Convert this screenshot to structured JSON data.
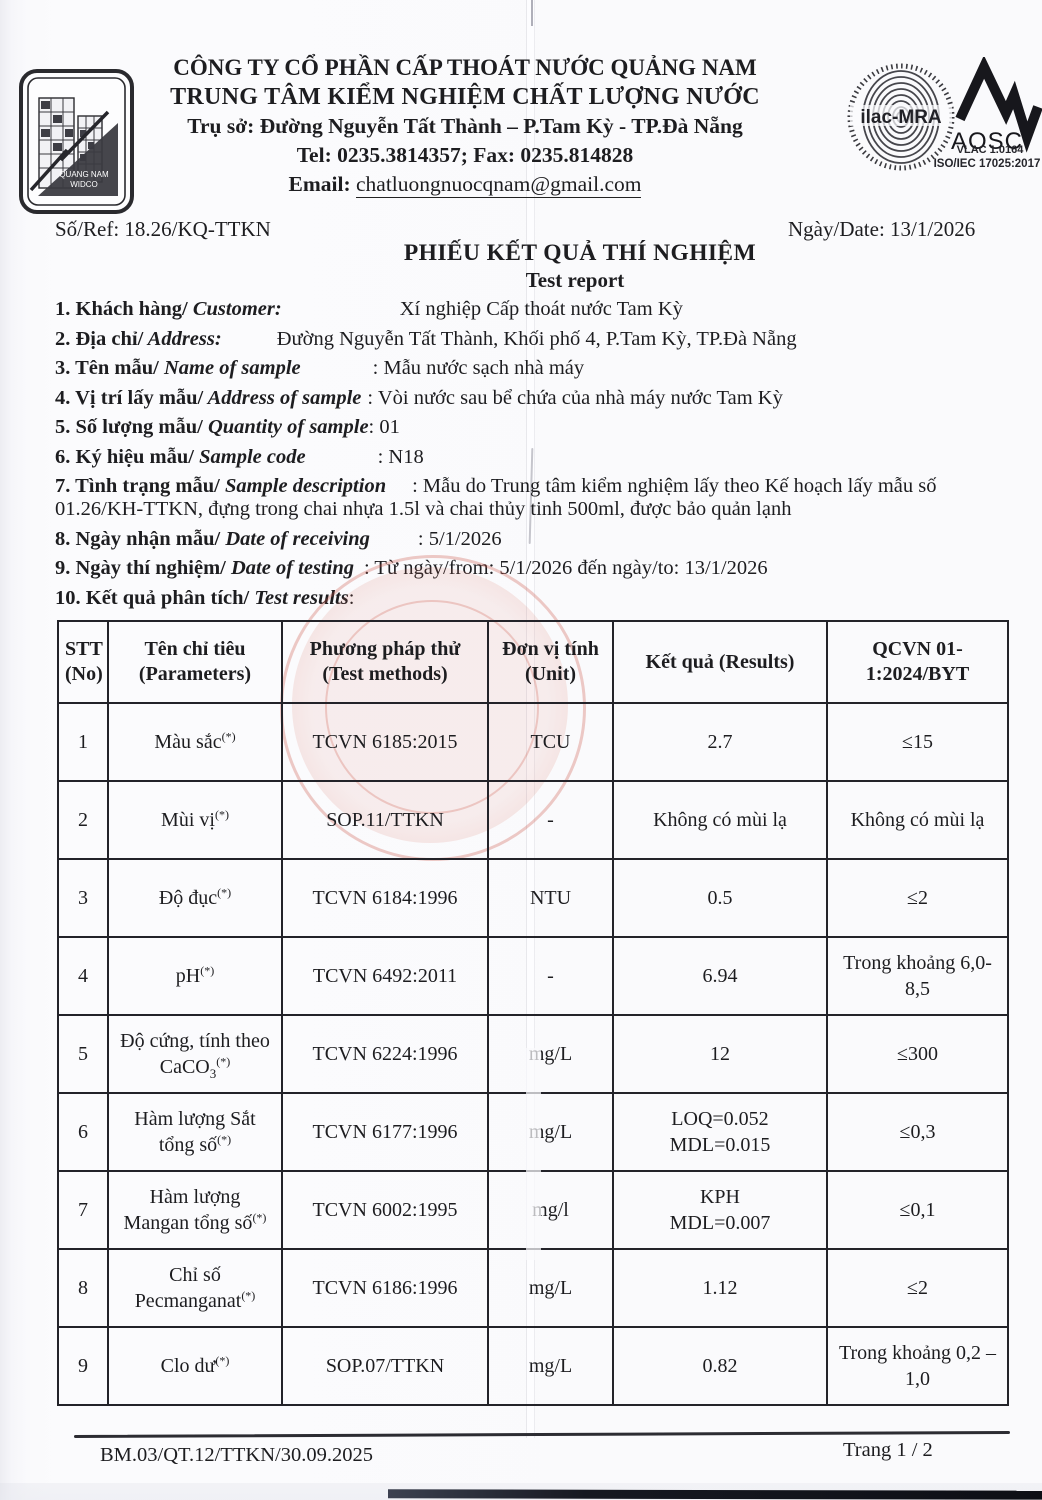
{
  "colors": {
    "ink": "#1d1d20",
    "stamp_red": "#cb5446",
    "table_border": "#232329"
  },
  "header": {
    "company": "CÔNG TY CỔ PHẦN CẤP THOÁT NƯỚC QUẢNG NAM",
    "center": "TRUNG TÂM KIỂM NGHIỆM CHẤT LƯỢNG NƯỚC",
    "address": "Trụ sở: Đường Nguyễn Tất Thành – P.Tam Kỳ -  TP.Đà Nẵng",
    "tel_fax": "Tel: 0235.3814357; Fax: 0235.814828",
    "email_label": "Email:",
    "email": "chatluongnuocqnam@gmail.com",
    "logo_line1": "QUANG NAM",
    "logo_line2": "WIDCO",
    "cert_ilac": "ilac-MRA",
    "cert_aosc": "AOSC",
    "cert_vlac": "VLAC 1.0164",
    "cert_iso": "ISO/IEC 17025:2017"
  },
  "ref_line": {
    "ref": "Số/Ref: 18.26/KQ-TTKN",
    "date": "Ngày/Date: 13/1/2026"
  },
  "title": {
    "vi": "PHIẾU KẾT QUẢ THÍ NGHIỆM",
    "en": "Test report"
  },
  "items": [
    {
      "label_vi": "1. Khách hàng/",
      "label_en": " Customer:",
      "value": "Xí nghiệp Cấp thoát nước Tam Kỳ"
    },
    {
      "label_vi": "2. Địa chỉ/",
      "label_en": " Address:",
      "value": "Đường Nguyễn Tất Thành, Khối phố 4, P.Tam Kỳ, TP.Đà Nẵng"
    },
    {
      "label_vi": "3. Tên mẫu/",
      "label_en": " Name of sample",
      "value": ": Mẫu nước sạch nhà máy"
    },
    {
      "label_vi": "4. Vị trí lấy mẫu/",
      "label_en": " Address of sample",
      "value": ": Vòi nước sau bể chứa của nhà máy nước Tam Kỳ"
    },
    {
      "label_vi": "5. Số lượng mẫu/",
      "label_en": " Quantity of sample",
      "value": ": 01"
    },
    {
      "label_vi": "6. Ký hiệu mẫu/",
      "label_en": " Sample code",
      "value": ": N18"
    },
    {
      "label_vi": "7. Tình trạng mẫu/",
      "label_en": " Sample description",
      "value": ": Mẫu do Trung tâm kiểm nghiệm lấy theo Kế hoạch lấy mẫu số 01.26/KH-TTKN, đựng trong chai nhựa 1.5l và chai thủy tinh 500ml, được bảo quản lạnh"
    },
    {
      "label_vi": "8. Ngày nhận mẫu/",
      "label_en": " Date of receiving",
      "value": ": 5/1/2026"
    },
    {
      "label_vi": "9. Ngày thí nghiệm/",
      "label_en": " Date of testing",
      "value": ": Từ ngày/from: 5/1/2026  đến ngày/to: 13/1/2026"
    },
    {
      "label_vi": "10. Kết quả phân tích/",
      "label_en": " Test results",
      "value": ":"
    }
  ],
  "table": {
    "headers": [
      "STT\n(No)",
      "Tên chỉ tiêu\n(Parameters)",
      "Phương pháp thử\n(Test methods)",
      "Đơn vị tính\n(Unit)",
      "Kết quả (Results)",
      "QCVN 01-\n1:2024/BYT"
    ],
    "rows": [
      {
        "no": "1",
        "param": "Màu sắc",
        "param_sub": "",
        "sup": "(*)",
        "method": "TCVN 6185:2015",
        "unit": "TCU",
        "result": "2.7",
        "limit": "≤15"
      },
      {
        "no": "2",
        "param": "Mùi vị",
        "param_sub": "",
        "sup": "(*)",
        "method": "SOP.11/TTKN",
        "unit": "-",
        "result": "Không có mùi lạ",
        "limit": "Không có mùi lạ"
      },
      {
        "no": "3",
        "param": "Độ đục",
        "param_sub": "",
        "sup": "(*)",
        "method": "TCVN 6184:1996",
        "unit": "NTU",
        "result": "0.5",
        "limit": "≤2"
      },
      {
        "no": "4",
        "param": "pH",
        "param_sub": "",
        "sup": "(*)",
        "method": "TCVN 6492:2011",
        "unit": "-",
        "result": "6.94",
        "limit": "Trong khoảng 6,0-8,5"
      },
      {
        "no": "5",
        "param": "Độ cứng, tính theo CaCO",
        "param_sub": "3",
        "sup": "(*)",
        "method": "TCVN 6224:1996",
        "unit": "mg/L",
        "result": "12",
        "limit": "≤300"
      },
      {
        "no": "6",
        "param": "Hàm lượng Sắt tổng số",
        "param_sub": "",
        "sup": "(*)",
        "method": "TCVN 6177:1996",
        "unit": "mg/L",
        "result": "LOQ=0.052\nMDL=0.015",
        "limit": "≤0,3"
      },
      {
        "no": "7",
        "param": "Hàm lượng Mangan tổng số",
        "param_sub": "",
        "sup": "(*)",
        "method": "TCVN 6002:1995",
        "unit": "mg/l",
        "result": "KPH\nMDL=0.007",
        "limit": "≤0,1"
      },
      {
        "no": "8",
        "param": "Chỉ số Pecmanganat",
        "param_sub": "",
        "sup": "(*)",
        "method": "TCVN 6186:1996",
        "unit": "mg/L",
        "result": "1.12",
        "limit": "≤2"
      },
      {
        "no": "9",
        "param": "Clo dư",
        "param_sub": "",
        "sup": "(*)",
        "method": "SOP.07/TTKN",
        "unit": "mg/L",
        "result": "0.82",
        "limit": "Trong khoảng 0,2 – 1,0"
      }
    ]
  },
  "footer": {
    "form_code": "BM.03/QT.12/TTKN/30.09.2025",
    "page": "Trang 1 / 2"
  }
}
